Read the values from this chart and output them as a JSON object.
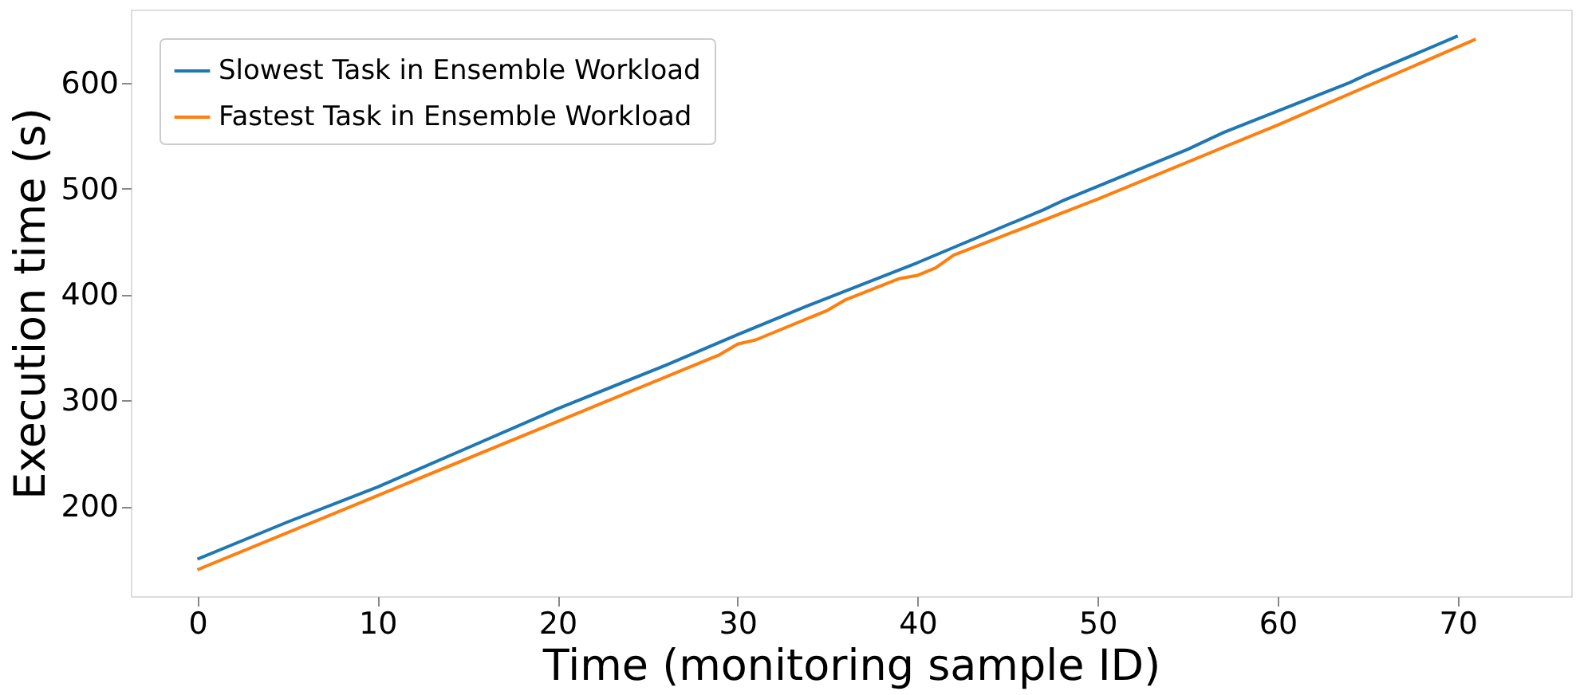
{
  "chart_data": {
    "type": "line",
    "xlabel": "Time (monitoring sample ID)",
    "ylabel": "Execution time (s)",
    "xlim": [
      -3.7,
      76.3
    ],
    "ylim": [
      115,
      669
    ],
    "xticks": [
      0,
      10,
      20,
      30,
      40,
      50,
      60,
      70
    ],
    "yticks": [
      200,
      300,
      400,
      500,
      600
    ],
    "grid": false,
    "legend": "top left",
    "marker": "none",
    "line_style": "solid",
    "series": [
      {
        "name": "Slowest Task in Ensemble Workload",
        "color": "#1f77b4",
        "x": [
          0,
          5,
          10,
          15,
          20,
          26,
          30,
          34,
          40,
          47,
          48,
          55,
          57,
          64,
          65,
          70
        ],
        "values": [
          150,
          185,
          218,
          255,
          292,
          333,
          362,
          390,
          430,
          480,
          488,
          537,
          553,
          600,
          608,
          644
        ]
      },
      {
        "name": "Fastest Task in Ensemble Workload",
        "color": "#ff7f0e",
        "x": [
          0,
          10,
          20,
          29,
          30,
          31,
          35,
          36,
          39,
          40,
          41,
          42,
          50,
          60,
          71
        ],
        "values": [
          140,
          210,
          280,
          343,
          353,
          357,
          385,
          395,
          415,
          418,
          425,
          437,
          490,
          560,
          641
        ]
      }
    ]
  }
}
